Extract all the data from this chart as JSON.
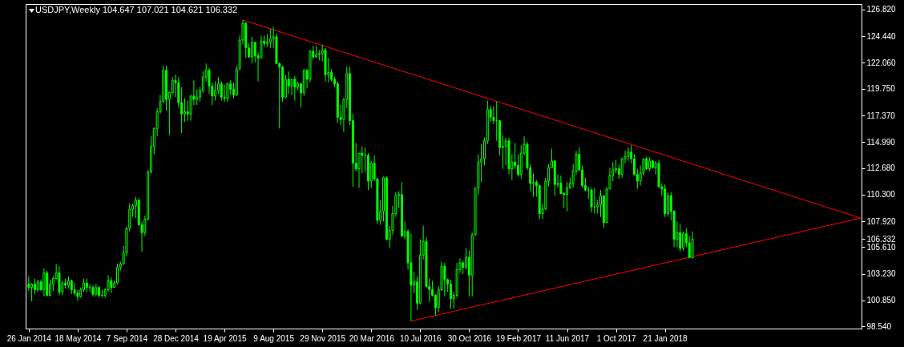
{
  "chart_data": {
    "type": "candlestick",
    "title": "USDJPY,Weekly  104.647 107.021 104.621 106.332",
    "color": "#00ff00",
    "xlim": [
      "2014-01-19",
      "2019-04-16"
    ],
    "xticks": [
      {
        "value": "2014-01-26",
        "label": "26 Jan 2014"
      },
      {
        "value": "2014-05-18",
        "label": "18 May 2014"
      },
      {
        "value": "2014-09-07",
        "label": "7 Sep 2014"
      },
      {
        "value": "2014-12-28",
        "label": "28 Dec 2014"
      },
      {
        "value": "2015-04-19",
        "label": "19 Apr 2015"
      },
      {
        "value": "2015-08-09",
        "label": "9 Aug 2015"
      },
      {
        "value": "2015-11-29",
        "label": "29 Nov 2015"
      },
      {
        "value": "2016-03-20",
        "label": "20 Mar 2016"
      },
      {
        "value": "2016-07-10",
        "label": "10 Jul 2016"
      },
      {
        "value": "2016-10-30",
        "label": "30 Oct 2016"
      },
      {
        "value": "2017-02-19",
        "label": "19 Feb 2017"
      },
      {
        "value": "2017-06-11",
        "label": "11 Jun 2017"
      },
      {
        "value": "2017-10-01",
        "label": "1 Oct 2017"
      },
      {
        "value": "2018-01-21",
        "label": "21 Jan 2018"
      }
    ],
    "ylim": [
      98.33,
      127.32
    ],
    "yticks": [
      {
        "value": 98.54,
        "label": "98.540"
      },
      {
        "value": 100.85,
        "label": "100.850"
      },
      {
        "value": 103.23,
        "label": "103.230"
      },
      {
        "value": 105.61,
        "label": "105.610"
      },
      {
        "value": 106.332,
        "label": "106.332"
      },
      {
        "value": 107.92,
        "label": "107.920"
      },
      {
        "value": 110.3,
        "label": "110.300"
      },
      {
        "value": 112.68,
        "label": "112.680"
      },
      {
        "value": 114.99,
        "label": "114.990"
      },
      {
        "value": 117.37,
        "label": "117.370"
      },
      {
        "value": 119.75,
        "label": "119.750"
      },
      {
        "value": 122.06,
        "label": "122.060"
      },
      {
        "value": 124.44,
        "label": "124.440"
      },
      {
        "value": 126.82,
        "label": "126.820"
      }
    ],
    "x": [
      "2014-01-26",
      "2014-02-02",
      "2014-02-09",
      "2014-02-16",
      "2014-02-23",
      "2014-03-02",
      "2014-03-09",
      "2014-03-16",
      "2014-03-23",
      "2014-03-30",
      "2014-04-06",
      "2014-04-13",
      "2014-04-20",
      "2014-04-27",
      "2014-05-04",
      "2014-05-11",
      "2014-05-18",
      "2014-05-25",
      "2014-06-01",
      "2014-06-08",
      "2014-06-15",
      "2014-06-22",
      "2014-06-29",
      "2014-07-06",
      "2014-07-13",
      "2014-07-20",
      "2014-07-27",
      "2014-08-03",
      "2014-08-10",
      "2014-08-17",
      "2014-08-24",
      "2014-08-31",
      "2014-09-07",
      "2014-09-14",
      "2014-09-21",
      "2014-09-28",
      "2014-10-05",
      "2014-10-12",
      "2014-10-19",
      "2014-10-26",
      "2014-11-02",
      "2014-11-09",
      "2014-11-16",
      "2014-11-23",
      "2014-11-30",
      "2014-12-07",
      "2014-12-14",
      "2014-12-21",
      "2014-12-28",
      "2015-01-04",
      "2015-01-11",
      "2015-01-18",
      "2015-01-25",
      "2015-02-01",
      "2015-02-08",
      "2015-02-15",
      "2015-02-22",
      "2015-03-01",
      "2015-03-08",
      "2015-03-15",
      "2015-03-22",
      "2015-03-29",
      "2015-04-05",
      "2015-04-12",
      "2015-04-19",
      "2015-04-26",
      "2015-05-03",
      "2015-05-10",
      "2015-05-17",
      "2015-05-24",
      "2015-05-31",
      "2015-06-07",
      "2015-06-14",
      "2015-06-21",
      "2015-06-28",
      "2015-07-05",
      "2015-07-12",
      "2015-07-19",
      "2015-07-26",
      "2015-08-02",
      "2015-08-09",
      "2015-08-16",
      "2015-08-23",
      "2015-08-30",
      "2015-09-06",
      "2015-09-13",
      "2015-09-20",
      "2015-09-27",
      "2015-10-04",
      "2015-10-11",
      "2015-10-18",
      "2015-10-25",
      "2015-11-01",
      "2015-11-08",
      "2015-11-15",
      "2015-11-22",
      "2015-11-29",
      "2015-12-06",
      "2015-12-13",
      "2015-12-20",
      "2015-12-27",
      "2016-01-03",
      "2016-01-10",
      "2016-01-17",
      "2016-01-24",
      "2016-01-31",
      "2016-02-07",
      "2016-02-14",
      "2016-02-21",
      "2016-02-28",
      "2016-03-06",
      "2016-03-13",
      "2016-03-20",
      "2016-03-27",
      "2016-04-03",
      "2016-04-10",
      "2016-04-17",
      "2016-04-24",
      "2016-05-01",
      "2016-05-08",
      "2016-05-15",
      "2016-05-22",
      "2016-05-29",
      "2016-06-05",
      "2016-06-12",
      "2016-06-19",
      "2016-06-26",
      "2016-07-03",
      "2016-07-10",
      "2016-07-17",
      "2016-07-24",
      "2016-07-31",
      "2016-08-07",
      "2016-08-14",
      "2016-08-21",
      "2016-08-28",
      "2016-09-04",
      "2016-09-11",
      "2016-09-18",
      "2016-09-25",
      "2016-10-02",
      "2016-10-09",
      "2016-10-16",
      "2016-10-23",
      "2016-10-30",
      "2016-11-06",
      "2016-11-13",
      "2016-11-20",
      "2016-11-27",
      "2016-12-04",
      "2016-12-11",
      "2016-12-18",
      "2016-12-25",
      "2017-01-01",
      "2017-01-08",
      "2017-01-15",
      "2017-01-22",
      "2017-01-29",
      "2017-02-05",
      "2017-02-12",
      "2017-02-19",
      "2017-02-26",
      "2017-03-05",
      "2017-03-12",
      "2017-03-19",
      "2017-03-26",
      "2017-04-02",
      "2017-04-09",
      "2017-04-16",
      "2017-04-23",
      "2017-04-30",
      "2017-05-07",
      "2017-05-14",
      "2017-05-21",
      "2017-05-28",
      "2017-06-04",
      "2017-06-11",
      "2017-06-18",
      "2017-06-25",
      "2017-07-02",
      "2017-07-09",
      "2017-07-16",
      "2017-07-23",
      "2017-07-30",
      "2017-08-06",
      "2017-08-13",
      "2017-08-20",
      "2017-08-27",
      "2017-09-03",
      "2017-09-10",
      "2017-09-17",
      "2017-09-24",
      "2017-10-01",
      "2017-10-08",
      "2017-10-15",
      "2017-10-22",
      "2017-10-29",
      "2017-11-05",
      "2017-11-12",
      "2017-11-19",
      "2017-11-26",
      "2017-12-03",
      "2017-12-10",
      "2017-12-17",
      "2017-12-24",
      "2017-12-31",
      "2018-01-07",
      "2018-01-14",
      "2018-01-21",
      "2018-01-28",
      "2018-02-04",
      "2018-02-11",
      "2018-02-18",
      "2018-02-25",
      "2018-03-04",
      "2018-03-11",
      "2018-03-18",
      "2018-03-25"
    ],
    "ohlc": [
      [
        102.3,
        103.0,
        101.7,
        102.0
      ],
      [
        102.0,
        102.4,
        100.75,
        102.3
      ],
      [
        102.3,
        102.8,
        101.4,
        101.8
      ],
      [
        101.8,
        102.7,
        101.6,
        102.5
      ],
      [
        102.5,
        102.7,
        101.7,
        101.8
      ],
      [
        101.8,
        103.7,
        101.2,
        103.3
      ],
      [
        103.3,
        103.5,
        101.2,
        101.3
      ],
      [
        101.3,
        102.7,
        101.2,
        102.3
      ],
      [
        102.3,
        103.0,
        101.7,
        102.8
      ],
      [
        102.8,
        104.1,
        102.7,
        103.3
      ],
      [
        103.3,
        103.9,
        101.3,
        101.6
      ],
      [
        101.6,
        102.6,
        101.3,
        102.4
      ],
      [
        102.4,
        102.8,
        101.9,
        102.2
      ],
      [
        102.2,
        103.0,
        101.9,
        102.6
      ],
      [
        102.6,
        102.7,
        101.4,
        101.8
      ],
      [
        101.8,
        102.4,
        101.3,
        101.5
      ],
      [
        101.5,
        101.8,
        100.8,
        101.2
      ],
      [
        101.2,
        102.0,
        101.1,
        101.8
      ],
      [
        101.8,
        102.8,
        101.6,
        102.4
      ],
      [
        102.4,
        102.8,
        101.6,
        102.0
      ],
      [
        102.0,
        102.3,
        101.6,
        102.0
      ],
      [
        102.0,
        102.2,
        101.2,
        101.4
      ],
      [
        101.4,
        102.3,
        101.2,
        102.0
      ],
      [
        102.0,
        102.1,
        101.1,
        101.3
      ],
      [
        101.3,
        101.8,
        101.1,
        101.3
      ],
      [
        101.3,
        101.9,
        101.1,
        101.8
      ],
      [
        101.8,
        103.1,
        101.6,
        102.6
      ],
      [
        102.6,
        102.9,
        101.5,
        102.0
      ],
      [
        102.0,
        102.6,
        102.0,
        102.4
      ],
      [
        102.4,
        104.1,
        102.3,
        103.8
      ],
      [
        103.8,
        104.3,
        103.5,
        104.1
      ],
      [
        104.1,
        105.7,
        104.1,
        105.1
      ],
      [
        105.1,
        107.4,
        104.8,
        107.3
      ],
      [
        107.3,
        109.5,
        107.0,
        109.0
      ],
      [
        109.0,
        109.5,
        108.3,
        109.3
      ],
      [
        109.3,
        110.1,
        108.2,
        109.8
      ],
      [
        109.8,
        109.9,
        107.5,
        107.6
      ],
      [
        107.6,
        107.9,
        105.2,
        106.9
      ],
      [
        106.9,
        108.4,
        106.6,
        108.1
      ],
      [
        108.1,
        112.5,
        108.0,
        112.3
      ],
      [
        112.3,
        115.5,
        112.2,
        114.6
      ],
      [
        114.6,
        116.3,
        113.9,
        116.2
      ],
      [
        116.2,
        118.0,
        115.5,
        117.7
      ],
      [
        117.7,
        119.2,
        117.5,
        118.6
      ],
      [
        118.6,
        121.8,
        118.5,
        121.4
      ],
      [
        121.4,
        121.8,
        117.8,
        118.8
      ],
      [
        118.8,
        119.5,
        115.6,
        119.4
      ],
      [
        119.4,
        120.8,
        119.3,
        120.5
      ],
      [
        120.5,
        121.0,
        119.0,
        120.3
      ],
      [
        120.3,
        120.8,
        118.1,
        118.5
      ],
      [
        118.5,
        119.9,
        115.8,
        117.5
      ],
      [
        117.5,
        118.9,
        116.8,
        117.7
      ],
      [
        117.7,
        118.7,
        116.9,
        117.5
      ],
      [
        117.5,
        119.2,
        116.9,
        119.1
      ],
      [
        119.1,
        120.5,
        118.3,
        118.8
      ],
      [
        118.8,
        119.7,
        118.3,
        119.0
      ],
      [
        119.0,
        119.9,
        118.6,
        119.6
      ],
      [
        119.6,
        121.3,
        119.4,
        120.8
      ],
      [
        120.8,
        122.0,
        120.4,
        121.4
      ],
      [
        121.4,
        121.6,
        119.3,
        120.0
      ],
      [
        120.0,
        120.3,
        118.3,
        119.1
      ],
      [
        119.1,
        120.4,
        118.7,
        119.6
      ],
      [
        119.6,
        120.8,
        119.3,
        120.2
      ],
      [
        120.2,
        120.4,
        118.7,
        119.0
      ],
      [
        119.0,
        120.1,
        118.6,
        118.9
      ],
      [
        118.9,
        120.3,
        118.6,
        120.2
      ],
      [
        120.2,
        120.5,
        119.2,
        119.7
      ],
      [
        119.7,
        120.3,
        118.9,
        119.2
      ],
      [
        119.2,
        121.8,
        119.1,
        121.5
      ],
      [
        121.5,
        124.5,
        121.5,
        124.1
      ],
      [
        124.1,
        125.9,
        123.7,
        125.6
      ],
      [
        125.6,
        125.7,
        122.5,
        123.4
      ],
      [
        123.4,
        123.8,
        122.5,
        122.6
      ],
      [
        122.6,
        124.4,
        122.0,
        123.9
      ],
      [
        123.9,
        123.9,
        122.1,
        122.7
      ],
      [
        122.7,
        123.0,
        120.4,
        122.5
      ],
      [
        122.5,
        124.5,
        122.5,
        124.0
      ],
      [
        124.0,
        124.5,
        123.5,
        123.8
      ],
      [
        123.8,
        124.6,
        123.5,
        123.9
      ],
      [
        123.9,
        125.1,
        123.4,
        124.2
      ],
      [
        124.2,
        125.3,
        123.4,
        124.4
      ],
      [
        124.4,
        124.7,
        122.0,
        122.0
      ],
      [
        122.0,
        122.1,
        116.2,
        121.7
      ],
      [
        121.7,
        121.8,
        118.6,
        119.0
      ],
      [
        119.0,
        121.0,
        118.9,
        120.6
      ],
      [
        120.6,
        121.3,
        119.3,
        120.0
      ],
      [
        120.0,
        120.6,
        119.2,
        120.6
      ],
      [
        120.6,
        120.9,
        118.7,
        119.9
      ],
      [
        119.9,
        120.4,
        119.6,
        120.2
      ],
      [
        120.2,
        120.2,
        118.1,
        119.4
      ],
      [
        119.4,
        121.5,
        119.1,
        121.4
      ],
      [
        121.4,
        121.5,
        119.8,
        120.6
      ],
      [
        120.6,
        123.2,
        120.3,
        123.1
      ],
      [
        123.1,
        123.6,
        122.4,
        122.6
      ],
      [
        122.6,
        123.6,
        122.5,
        122.8
      ],
      [
        122.8,
        123.2,
        122.3,
        122.9
      ],
      [
        122.9,
        123.7,
        122.2,
        123.2
      ],
      [
        123.2,
        123.4,
        120.4,
        121.0
      ],
      [
        121.0,
        122.5,
        120.3,
        121.2
      ],
      [
        121.2,
        121.5,
        120.4,
        120.6
      ],
      [
        120.6,
        120.8,
        119.9,
        120.2
      ],
      [
        120.2,
        120.4,
        116.7,
        117.2
      ],
      [
        117.2,
        118.3,
        116.5,
        117.0
      ],
      [
        117.0,
        118.9,
        115.9,
        118.8
      ],
      [
        118.8,
        121.7,
        118.0,
        121.1
      ],
      [
        121.1,
        121.7,
        116.5,
        116.9
      ],
      [
        116.9,
        117.5,
        111.0,
        113.1
      ],
      [
        113.1,
        114.9,
        112.4,
        112.6
      ],
      [
        112.6,
        114.0,
        110.9,
        114.0
      ],
      [
        114.0,
        114.6,
        112.2,
        113.8
      ],
      [
        113.8,
        114.5,
        112.3,
        113.8
      ],
      [
        113.8,
        114.0,
        110.7,
        111.5
      ],
      [
        111.5,
        113.3,
        110.9,
        113.1
      ],
      [
        113.1,
        113.8,
        111.5,
        111.7
      ],
      [
        111.7,
        111.8,
        107.7,
        108.0
      ],
      [
        108.0,
        109.8,
        107.6,
        108.8
      ],
      [
        108.8,
        111.9,
        107.9,
        111.8
      ],
      [
        111.8,
        111.9,
        106.2,
        106.3
      ],
      [
        106.3,
        107.5,
        105.5,
        107.1
      ],
      [
        107.1,
        109.3,
        106.7,
        108.6
      ],
      [
        108.6,
        110.5,
        108.3,
        110.2
      ],
      [
        110.2,
        110.6,
        109.1,
        110.3
      ],
      [
        110.3,
        111.4,
        106.5,
        106.6
      ],
      [
        106.6,
        107.9,
        106.3,
        107.0
      ],
      [
        107.0,
        107.2,
        103.6,
        104.2
      ],
      [
        104.2,
        106.8,
        99.0,
        102.2
      ],
      [
        102.2,
        103.4,
        101.5,
        102.5
      ],
      [
        102.5,
        103.0,
        100.0,
        100.6
      ],
      [
        100.6,
        106.3,
        100.5,
        104.9
      ],
      [
        104.9,
        107.5,
        104.5,
        106.1
      ],
      [
        106.1,
        106.5,
        102.0,
        102.1
      ],
      [
        102.1,
        102.8,
        100.7,
        101.8
      ],
      [
        101.8,
        102.6,
        101.2,
        101.3
      ],
      [
        101.3,
        101.4,
        99.5,
        100.2
      ],
      [
        100.2,
        102.1,
        99.8,
        101.8
      ],
      [
        101.8,
        104.3,
        101.7,
        103.9
      ],
      [
        103.9,
        104.2,
        101.2,
        102.7
      ],
      [
        102.7,
        102.8,
        101.6,
        102.3
      ],
      [
        102.3,
        102.7,
        100.1,
        101.0
      ],
      [
        101.0,
        101.6,
        100.1,
        101.3
      ],
      [
        101.3,
        104.2,
        101.1,
        103.6
      ],
      [
        103.6,
        104.6,
        103.3,
        104.2
      ],
      [
        104.2,
        104.4,
        103.2,
        103.8
      ],
      [
        103.8,
        105.5,
        103.6,
        104.7
      ],
      [
        104.7,
        105.3,
        101.2,
        103.1
      ],
      [
        103.1,
        106.9,
        101.2,
        106.7
      ],
      [
        106.7,
        110.9,
        106.6,
        110.9
      ],
      [
        110.9,
        113.9,
        110.3,
        113.2
      ],
      [
        113.2,
        114.8,
        111.4,
        113.5
      ],
      [
        113.5,
        115.4,
        112.9,
        115.1
      ],
      [
        115.1,
        118.7,
        114.8,
        117.9
      ],
      [
        117.9,
        118.2,
        116.8,
        117.2
      ],
      [
        117.2,
        118.2,
        116.6,
        116.9
      ],
      [
        116.9,
        118.6,
        115.1,
        116.9
      ],
      [
        116.9,
        116.9,
        113.8,
        114.5
      ],
      [
        114.5,
        115.6,
        112.6,
        114.6
      ],
      [
        114.6,
        115.4,
        112.9,
        115.1
      ],
      [
        115.1,
        115.4,
        112.1,
        112.6
      ],
      [
        112.6,
        113.9,
        111.6,
        113.2
      ],
      [
        113.2,
        114.9,
        112.6,
        112.9
      ],
      [
        112.9,
        113.9,
        111.9,
        112.1
      ],
      [
        112.1,
        114.7,
        111.7,
        114.0
      ],
      [
        114.0,
        115.5,
        113.8,
        114.8
      ],
      [
        114.8,
        115.0,
        112.5,
        112.7
      ],
      [
        112.7,
        113.0,
        110.6,
        111.3
      ],
      [
        111.3,
        112.2,
        110.1,
        111.4
      ],
      [
        111.4,
        111.6,
        110.1,
        111.1
      ],
      [
        111.1,
        111.2,
        108.1,
        108.6
      ],
      [
        108.6,
        109.5,
        108.1,
        109.0
      ],
      [
        109.0,
        111.8,
        108.9,
        111.5
      ],
      [
        111.5,
        113.0,
        111.0,
        112.7
      ],
      [
        112.7,
        114.4,
        112.7,
        113.3
      ],
      [
        113.3,
        113.4,
        110.2,
        111.2
      ],
      [
        111.2,
        112.1,
        110.9,
        111.3
      ],
      [
        111.3,
        112.0,
        110.4,
        110.4
      ],
      [
        110.4,
        110.5,
        109.1,
        110.3
      ],
      [
        110.3,
        111.4,
        108.8,
        110.9
      ],
      [
        110.9,
        111.8,
        110.8,
        111.3
      ],
      [
        111.3,
        113.0,
        110.9,
        112.4
      ],
      [
        112.4,
        114.2,
        112.1,
        113.9
      ],
      [
        113.9,
        114.5,
        112.4,
        112.5
      ],
      [
        112.5,
        112.9,
        110.9,
        111.1
      ],
      [
        111.1,
        111.8,
        110.6,
        110.7
      ],
      [
        110.7,
        111.0,
        109.9,
        110.7
      ],
      [
        110.7,
        110.9,
        108.7,
        109.2
      ],
      [
        109.2,
        110.9,
        108.6,
        109.2
      ],
      [
        109.2,
        109.8,
        108.6,
        109.4
      ],
      [
        109.4,
        110.7,
        108.3,
        110.2
      ],
      [
        110.2,
        110.2,
        107.3,
        107.8
      ],
      [
        107.8,
        111.0,
        107.8,
        110.8
      ],
      [
        110.8,
        112.7,
        110.8,
        112.0
      ],
      [
        112.0,
        113.2,
        111.5,
        112.5
      ],
      [
        112.5,
        113.4,
        112.2,
        112.6
      ],
      [
        112.6,
        113.0,
        111.7,
        112.1
      ],
      [
        112.1,
        113.6,
        111.8,
        113.5
      ],
      [
        113.5,
        114.2,
        113.1,
        113.7
      ],
      [
        113.7,
        114.5,
        113.3,
        114.1
      ],
      [
        114.1,
        114.7,
        113.1,
        113.5
      ],
      [
        113.5,
        113.9,
        112.0,
        112.1
      ],
      [
        112.1,
        112.6,
        110.8,
        111.5
      ],
      [
        111.5,
        112.9,
        111.1,
        112.2
      ],
      [
        112.2,
        113.5,
        112.0,
        113.5
      ],
      [
        113.5,
        113.7,
        112.5,
        112.6
      ],
      [
        112.6,
        113.6,
        112.4,
        113.3
      ],
      [
        113.3,
        113.4,
        112.7,
        112.7
      ],
      [
        112.7,
        113.3,
        112.1,
        113.1
      ],
      [
        113.1,
        113.4,
        110.9,
        111.0
      ],
      [
        111.0,
        111.3,
        110.2,
        110.8
      ],
      [
        110.8,
        111.2,
        108.3,
        108.6
      ],
      [
        108.6,
        110.5,
        108.3,
        110.2
      ],
      [
        110.2,
        110.5,
        108.0,
        108.8
      ],
      [
        108.8,
        108.9,
        105.6,
        106.3
      ],
      [
        106.3,
        107.9,
        105.6,
        106.9
      ],
      [
        106.9,
        107.7,
        105.2,
        105.5
      ],
      [
        105.5,
        107.0,
        105.3,
        106.8
      ],
      [
        106.8,
        107.3,
        105.6,
        106.0
      ],
      [
        106.0,
        106.6,
        104.6,
        104.7
      ],
      [
        104.647,
        107.021,
        104.621,
        106.332
      ]
    ],
    "series": [
      {
        "type": "line",
        "color": "#ff0000",
        "x": [
          "2015-05-31",
          "2019-04-14"
        ],
        "values": [
          125.9,
          108.2
        ]
      },
      {
        "type": "line",
        "color": "#ff0000",
        "x": [
          "2016-06-19",
          "2019-04-14"
        ],
        "values": [
          99.0,
          108.2
        ]
      }
    ]
  }
}
